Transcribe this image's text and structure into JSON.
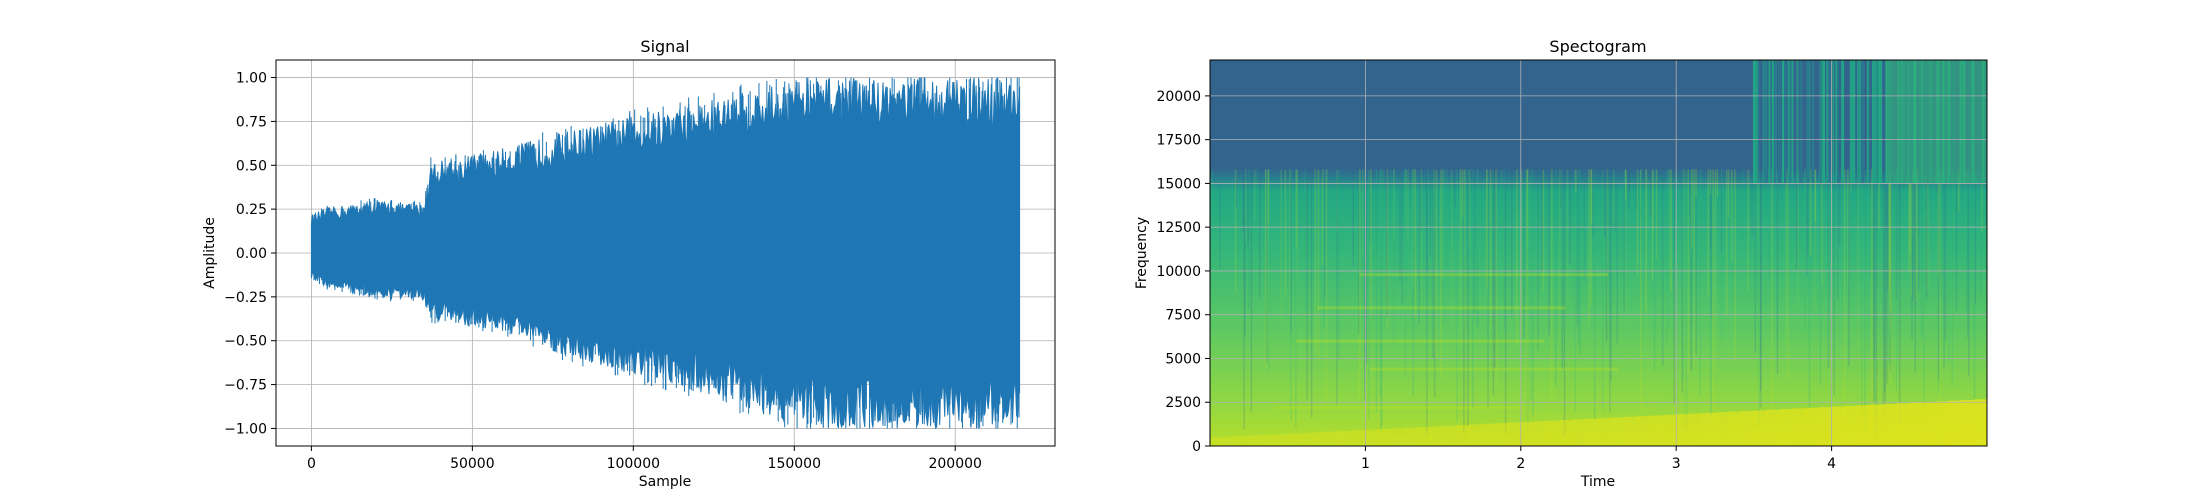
{
  "chart_data": [
    {
      "type": "line",
      "title": "Signal",
      "xlabel": "Sample",
      "ylabel": "Amplitude",
      "xlim": [
        -11000,
        231000
      ],
      "ylim": [
        -1.1,
        1.1
      ],
      "xticks": [
        0,
        50000,
        100000,
        150000,
        200000
      ],
      "yticks": [
        -1.0,
        -0.75,
        -0.5,
        -0.25,
        0.0,
        0.25,
        0.5,
        0.75,
        1.0
      ],
      "xtick_labels": [
        "0",
        "50000",
        "100000",
        "150000",
        "200000"
      ],
      "ytick_labels": [
        "−1.00",
        "−0.75",
        "−0.50",
        "−0.25",
        "0.00",
        "0.25",
        "0.50",
        "0.75",
        "1.00"
      ],
      "grid": true,
      "series": [
        {
          "color": "#1f77b4",
          "envelope": {
            "x": [
              0,
              5000,
              20000,
              35000,
              37000,
              60000,
              70000,
              80000,
              100000,
              120000,
              140000,
              150000,
              160000,
              170000,
              180000,
              200000,
              220000
            ],
            "upper": [
              0.22,
              0.26,
              0.3,
              0.28,
              0.52,
              0.6,
              0.65,
              0.7,
              0.78,
              0.86,
              0.94,
              0.98,
              1.0,
              1.0,
              1.0,
              1.0,
              1.0
            ],
            "lower": [
              -0.15,
              -0.2,
              -0.26,
              -0.27,
              -0.38,
              -0.45,
              -0.52,
              -0.6,
              -0.7,
              -0.8,
              -0.92,
              -0.97,
              -1.0,
              -1.0,
              -1.0,
              -1.0,
              -1.0
            ]
          }
        }
      ]
    },
    {
      "type": "heatmap",
      "title": "Spectogram",
      "xlabel": "Time",
      "ylabel": "Frequency",
      "xlim": [
        0.0,
        5.0
      ],
      "ylim": [
        0,
        22050
      ],
      "xticks": [
        1,
        2,
        3,
        4
      ],
      "yticks": [
        0,
        2500,
        5000,
        7500,
        10000,
        12500,
        15000,
        17500,
        20000
      ],
      "xtick_labels": [
        "1",
        "2",
        "3",
        "4"
      ],
      "ytick_labels": [
        "0",
        "2500",
        "5000",
        "7500",
        "10000",
        "12500",
        "15000",
        "17500",
        "20000"
      ],
      "grid": true,
      "colormap": "viridis",
      "colors": {
        "low": "#33648d",
        "mid": "#1fa187",
        "high": "#d8e219"
      }
    }
  ]
}
